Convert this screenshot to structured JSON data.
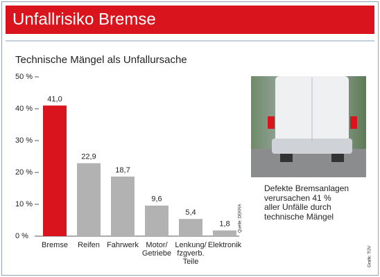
{
  "chart_data": {
    "type": "bar",
    "title": "Unfallrisiko Bremse",
    "subtitle": "Technische Mängel als Unfallursache",
    "categories": [
      "Bremse",
      "Reifen",
      "Fahrwerk",
      "Motor/\nGetriebe",
      "Lenkung/\nfzgverb.\nTeile",
      "Elektronik"
    ],
    "values": [
      41.0,
      22.9,
      18.7,
      9.6,
      5.4,
      1.8
    ],
    "value_labels": [
      "41,0",
      "22,9",
      "18,7",
      "9,6",
      "5,4",
      "1,8"
    ],
    "colors": [
      "#d9141c",
      "#b2b2b2",
      "#b2b2b2",
      "#b2b2b2",
      "#b2b2b2",
      "#b2b2b2"
    ],
    "ylim": [
      0,
      50
    ],
    "yticks": [
      {
        "value": 0,
        "label": "0 %"
      },
      {
        "value": 10,
        "label": "10 %"
      },
      {
        "value": 20,
        "label": "20 %"
      },
      {
        "value": 30,
        "label": "30 %"
      },
      {
        "value": 40,
        "label": "40 %"
      },
      {
        "value": 50,
        "label": "50 %"
      }
    ],
    "source": "Quelle: DEKRA"
  },
  "caption": "Defekte Bremsanlagen\nverursachen 41 %\naller Unfälle durch\ntechnische Mängel",
  "credit": "Grafik: TÜV"
}
